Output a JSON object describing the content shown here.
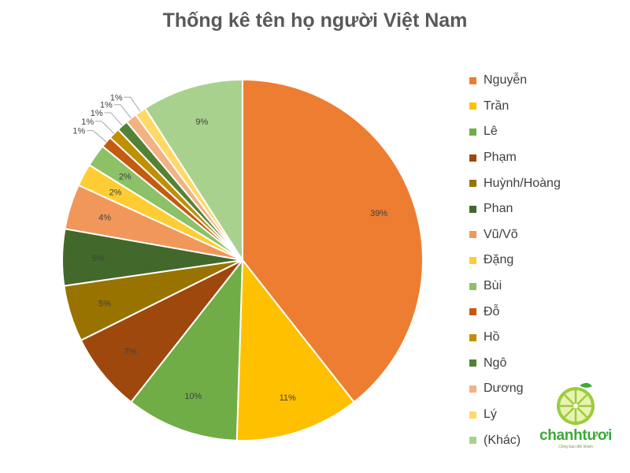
{
  "chart_data": {
    "type": "pie",
    "title": "Thống kê tên họ người Việt Nam",
    "legend_position": "right",
    "slices": [
      {
        "label": "Nguyễn",
        "value": 39,
        "value_label": "39%",
        "color": "#ED7D31"
      },
      {
        "label": "Trần",
        "value": 11,
        "value_label": "11%",
        "color": "#FFC000"
      },
      {
        "label": "Lê",
        "value": 10,
        "value_label": "10%",
        "color": "#70AD47"
      },
      {
        "label": "Phạm",
        "value": 7,
        "value_label": "7%",
        "color": "#9E480E"
      },
      {
        "label": "Huỳnh/Hoàng",
        "value": 5,
        "value_label": "5%",
        "color": "#997300"
      },
      {
        "label": "Phan",
        "value": 5,
        "value_label": "5%",
        "color": "#43682B"
      },
      {
        "label": "Vũ/Võ",
        "value": 4,
        "value_label": "4%",
        "color": "#F1975A"
      },
      {
        "label": "Đặng",
        "value": 2,
        "value_label": "2%",
        "color": "#FFCD33"
      },
      {
        "label": "Bùi",
        "value": 2,
        "value_label": "2%",
        "color": "#8CC168"
      },
      {
        "label": "Đỗ",
        "value": 1,
        "value_label": "1%",
        "color": "#C55A11"
      },
      {
        "label": "Hồ",
        "value": 1,
        "value_label": "1%",
        "color": "#BF9000"
      },
      {
        "label": "Ngô",
        "value": 1,
        "value_label": "1%",
        "color": "#548235"
      },
      {
        "label": "Dương",
        "value": 1,
        "value_label": "1%",
        "color": "#F4B183"
      },
      {
        "label": "Lý",
        "value": 1,
        "value_label": "1%",
        "color": "#FFD966"
      },
      {
        "label": "(Khác)",
        "value": 9,
        "value_label": "9%",
        "color": "#A9D18E"
      }
    ]
  },
  "logo": {
    "text": "chanhtươi",
    "tagline": "Công bạn đời khám",
    "icon": "lime-slice-icon"
  }
}
